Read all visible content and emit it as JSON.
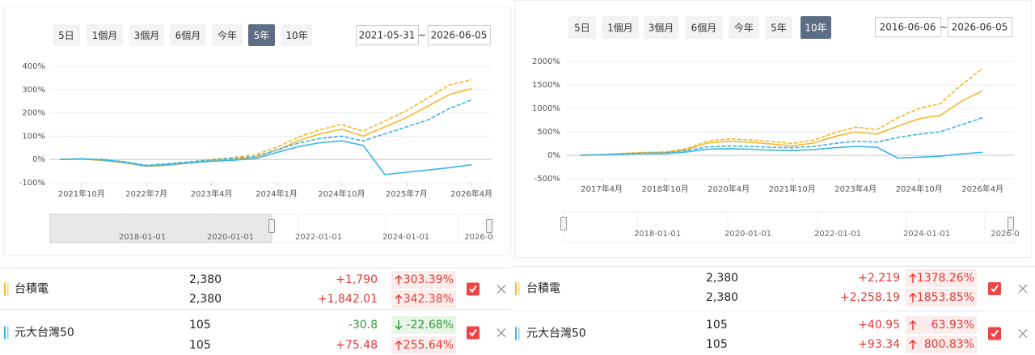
{
  "panels": [
    {
      "range_buttons": [
        "5日",
        "1個月",
        "3個月",
        "6個月",
        "今年",
        "5年",
        "10年"
      ],
      "active_button": 5,
      "start_date": "2021-05-31",
      "date_separator": "~",
      "end_date": "2026-06-05",
      "chart_data": {
        "type": "line",
        "categories": [
          null,
          "2021年10月",
          null,
          null,
          "2022年7月",
          null,
          null,
          "2023年4月",
          null,
          null,
          "2024年1月",
          null,
          null,
          "2024年10月",
          null,
          null,
          "2025年7月",
          null,
          null,
          "2026年4月"
        ],
        "ylim": [
          -100,
          400
        ],
        "yticks": [
          {
            "value": -100,
            "label": "-100%"
          },
          {
            "value": 0,
            "label": "0%"
          },
          {
            "value": 100,
            "label": "100%"
          },
          {
            "value": 200,
            "label": "200%"
          },
          {
            "value": 300,
            "label": "300%"
          },
          {
            "value": 400,
            "label": "400%"
          }
        ],
        "grid": true,
        "series": [
          {
            "color": "#f5b82e",
            "dashed": true,
            "values": [
              0,
              3,
              -3,
              -12,
              -26,
              -20,
              -10,
              0,
              8,
              20,
              52,
              95,
              128,
              150,
              122,
              165,
              210,
              265,
              320,
              342.38
            ]
          },
          {
            "color": "#f5b82e",
            "dashed": false,
            "values": [
              0,
              2,
              -5,
              -15,
              -30,
              -25,
              -15,
              -5,
              0,
              10,
              40,
              80,
              110,
              130,
              100,
              140,
              180,
              230,
              280,
              303.39
            ]
          },
          {
            "color": "#3bb4e5",
            "dashed": true,
            "values": [
              0,
              3,
              0,
              -10,
              -25,
              -18,
              -10,
              -2,
              5,
              12,
              40,
              70,
              90,
              100,
              80,
              110,
              140,
              170,
              220,
              255.64
            ]
          },
          {
            "color": "#3bb4e5",
            "dashed": false,
            "values": [
              0,
              2,
              -2,
              -12,
              -28,
              -22,
              -15,
              -8,
              -3,
              3,
              30,
              55,
              72,
              80,
              60,
              -65,
              -55,
              -45,
              -35,
              -22.68
            ]
          }
        ]
      },
      "navigator_labels": [
        "2018-01-01",
        "2020-01-01",
        "2022-01-01",
        "2024-01-01",
        "2026-0"
      ],
      "rows": [
        {
          "name": "台積電",
          "color": "#f5b82e",
          "lines": [
            {
              "price": "2,380",
              "change": "+1,790",
              "pct": "303.39%",
              "direction": "up"
            },
            {
              "price": "2,380",
              "change": "+1,842.01",
              "pct": "342.38%",
              "direction": "up"
            }
          ]
        },
        {
          "name": "元大台灣50",
          "color": "#3bb4e5",
          "lines": [
            {
              "price": "105",
              "change": "-30.8",
              "pct": "-22.68%",
              "direction": "down"
            },
            {
              "price": "105",
              "change": "+75.48",
              "pct": "255.64%",
              "direction": "up"
            }
          ]
        }
      ]
    },
    {
      "range_buttons": [
        "5日",
        "1個月",
        "3個月",
        "6個月",
        "今年",
        "5年",
        "10年"
      ],
      "active_button": 6,
      "start_date": "2016-06-06",
      "date_separator": "~",
      "end_date": "2026-06-05",
      "chart_data": {
        "type": "line",
        "categories": [
          null,
          "2017年4月",
          null,
          null,
          "2018年10月",
          null,
          null,
          "2020年4月",
          null,
          null,
          "2021年10月",
          null,
          null,
          "2023年4月",
          null,
          null,
          "2024年10月",
          null,
          null,
          "2026年4月"
        ],
        "ylim": [
          -500,
          2000
        ],
        "yticks": [
          {
            "value": -500,
            "label": "-500%"
          },
          {
            "value": 0,
            "label": "0%"
          },
          {
            "value": 500,
            "label": "500%"
          },
          {
            "value": 1000,
            "label": "1000%"
          },
          {
            "value": 1500,
            "label": "1500%"
          },
          {
            "value": 2000,
            "label": "2000%"
          }
        ],
        "grid": true,
        "series": [
          {
            "color": "#f5b82e",
            "dashed": true,
            "values": [
              0,
              15,
              40,
              60,
              70,
              140,
              300,
              350,
              330,
              290,
              250,
              320,
              480,
              600,
              550,
              800,
              1000,
              1100,
              1500,
              1853.85
            ]
          },
          {
            "color": "#f5b82e",
            "dashed": false,
            "values": [
              0,
              12,
              35,
              50,
              60,
              120,
              260,
              300,
              280,
              240,
              200,
              260,
              400,
              500,
              450,
              620,
              780,
              850,
              1150,
              1378.26
            ]
          },
          {
            "color": "#3bb4e5",
            "dashed": true,
            "values": [
              0,
              10,
              30,
              45,
              50,
              100,
              180,
              200,
              190,
              170,
              160,
              190,
              250,
              300,
              280,
              380,
              450,
              500,
              650,
              800.83
            ]
          },
          {
            "color": "#3bb4e5",
            "dashed": false,
            "values": [
              0,
              8,
              25,
              35,
              35,
              70,
              130,
              140,
              130,
              110,
              100,
              120,
              160,
              190,
              170,
              -60,
              -40,
              -20,
              30,
              63.93
            ]
          }
        ]
      },
      "navigator_labels": [
        "2018-01-01",
        "2020-01-01",
        "2022-01-01",
        "2024-01-01",
        "2026-0"
      ],
      "rows": [
        {
          "name": "台積電",
          "color": "#f5b82e",
          "lines": [
            {
              "price": "2,380",
              "change": "+2,219",
              "pct": "1378.26%",
              "direction": "up"
            },
            {
              "price": "2,380",
              "change": "+2,258.19",
              "pct": "1853.85%",
              "direction": "up"
            }
          ]
        },
        {
          "name": "元大台灣50",
          "color": "#3bb4e5",
          "lines": [
            {
              "price": "105",
              "change": "+40.95",
              "pct": "63.93%",
              "direction": "up"
            },
            {
              "price": "105",
              "change": "+93.34",
              "pct": "800.83%",
              "direction": "up"
            }
          ]
        }
      ]
    }
  ]
}
